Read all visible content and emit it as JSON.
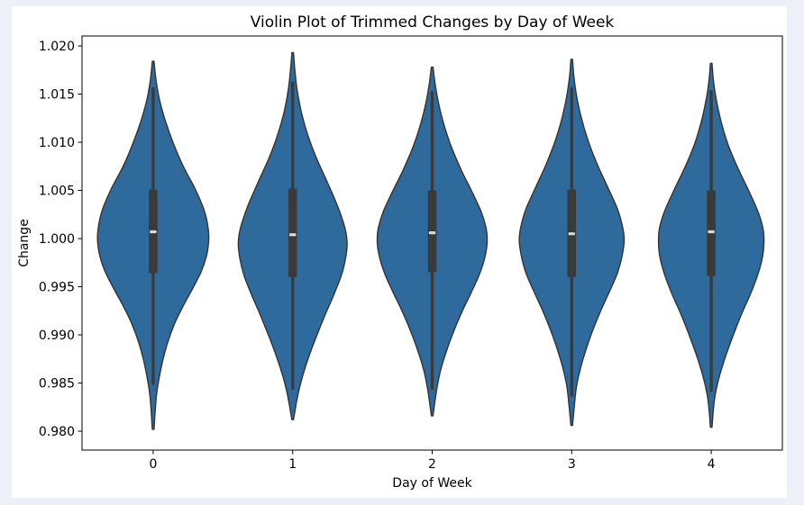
{
  "chart_data": {
    "type": "violin",
    "title": "Violin Plot of Trimmed Changes by Day of Week",
    "xlabel": "Day of Week",
    "ylabel": "Change",
    "x_tick_labels": [
      "0",
      "1",
      "2",
      "3",
      "4"
    ],
    "y_tick_labels": [
      "1.020",
      "1.015",
      "1.010",
      "1.005",
      "1.000",
      "0.995",
      "0.990",
      "0.985",
      "0.980"
    ],
    "xlim": [
      -0.51,
      4.51
    ],
    "ylim": [
      0.97804,
      1.02103
    ],
    "grid": false,
    "legend": null,
    "style": {
      "violin_fill": "#2e6b9c",
      "violin_edge": "#333333",
      "box_color": "#3a3a3a",
      "whisker_color": "#3a3a3a",
      "median_color": "#d9d9d9",
      "spine_color": "#000000",
      "tick_color": "#000000",
      "figure_bg": "#ffffff",
      "canvas_bg": "#eef0f7"
    },
    "violins": [
      {
        "category": "0",
        "median": 1.0007,
        "q1": 0.9964,
        "q3": 1.0051,
        "whisker_low": 0.9848,
        "whisker_high": 1.0157,
        "max_halfwidth": 0.398,
        "kde": [
          [
            1.0184,
            0.015
          ],
          [
            1.0165,
            0.05
          ],
          [
            1.0145,
            0.11
          ],
          [
            1.0122,
            0.22
          ],
          [
            1.0098,
            0.37
          ],
          [
            1.0074,
            0.55
          ],
          [
            1.0051,
            0.76
          ],
          [
            1.0029,
            0.92
          ],
          [
            1.0011,
            0.99
          ],
          [
            0.9997,
            1.0
          ],
          [
            0.9982,
            0.96
          ],
          [
            0.9965,
            0.86
          ],
          [
            0.9947,
            0.7
          ],
          [
            0.9929,
            0.53
          ],
          [
            0.9911,
            0.38
          ],
          [
            0.9892,
            0.26
          ],
          [
            0.9873,
            0.17
          ],
          [
            0.9853,
            0.1
          ],
          [
            0.9838,
            0.06
          ],
          [
            0.982,
            0.035
          ],
          [
            0.9802,
            0.015
          ]
        ]
      },
      {
        "category": "1",
        "median": 1.0004,
        "q1": 0.996,
        "q3": 1.0052,
        "whisker_low": 0.9843,
        "whisker_high": 1.0163,
        "max_halfwidth": 0.39,
        "kde": [
          [
            1.0193,
            0.015
          ],
          [
            1.0175,
            0.04
          ],
          [
            1.0155,
            0.08
          ],
          [
            1.0131,
            0.16
          ],
          [
            1.0107,
            0.28
          ],
          [
            1.0083,
            0.44
          ],
          [
            1.0058,
            0.64
          ],
          [
            1.0033,
            0.83
          ],
          [
            1.0011,
            0.96
          ],
          [
            0.9995,
            1.0
          ],
          [
            0.9979,
            0.97
          ],
          [
            0.9961,
            0.89
          ],
          [
            0.9941,
            0.75
          ],
          [
            0.992,
            0.59
          ],
          [
            0.9899,
            0.44
          ],
          [
            0.9878,
            0.3
          ],
          [
            0.9857,
            0.18
          ],
          [
            0.9839,
            0.1
          ],
          [
            0.9827,
            0.06
          ],
          [
            0.9812,
            0.015
          ]
        ]
      },
      {
        "category": "2",
        "median": 1.0006,
        "q1": 0.9965,
        "q3": 1.005,
        "whisker_low": 0.9843,
        "whisker_high": 1.0153,
        "max_halfwidth": 0.394,
        "kde": [
          [
            1.0178,
            0.015
          ],
          [
            1.0162,
            0.05
          ],
          [
            1.0142,
            0.11
          ],
          [
            1.0119,
            0.21
          ],
          [
            1.0095,
            0.35
          ],
          [
            1.0071,
            0.53
          ],
          [
            1.0049,
            0.72
          ],
          [
            1.0028,
            0.89
          ],
          [
            1.0011,
            0.98
          ],
          [
            0.9997,
            1.0
          ],
          [
            0.9981,
            0.96
          ],
          [
            0.9963,
            0.86
          ],
          [
            0.9944,
            0.71
          ],
          [
            0.9925,
            0.55
          ],
          [
            0.9905,
            0.4
          ],
          [
            0.9885,
            0.27
          ],
          [
            0.9865,
            0.16
          ],
          [
            0.9846,
            0.09
          ],
          [
            0.9831,
            0.05
          ],
          [
            0.9816,
            0.015
          ]
        ]
      },
      {
        "category": "3",
        "median": 1.0005,
        "q1": 0.996,
        "q3": 1.0051,
        "whisker_low": 0.9836,
        "whisker_high": 1.0157,
        "max_halfwidth": 0.376,
        "kde": [
          [
            1.0186,
            0.015
          ],
          [
            1.0169,
            0.04
          ],
          [
            1.0149,
            0.09
          ],
          [
            1.0126,
            0.18
          ],
          [
            1.0102,
            0.31
          ],
          [
            1.0078,
            0.48
          ],
          [
            1.0054,
            0.68
          ],
          [
            1.0031,
            0.87
          ],
          [
            1.0012,
            0.97
          ],
          [
            0.9998,
            1.0
          ],
          [
            0.9982,
            0.96
          ],
          [
            0.9964,
            0.87
          ],
          [
            0.9945,
            0.72
          ],
          [
            0.9926,
            0.56
          ],
          [
            0.9906,
            0.41
          ],
          [
            0.9886,
            0.28
          ],
          [
            0.9866,
            0.17
          ],
          [
            0.9846,
            0.09
          ],
          [
            0.9826,
            0.05
          ],
          [
            0.9806,
            0.015
          ]
        ]
      },
      {
        "category": "4",
        "median": 1.0007,
        "q1": 0.9961,
        "q3": 1.005,
        "whisker_low": 0.9841,
        "whisker_high": 1.0154,
        "max_halfwidth": 0.378,
        "kde": [
          [
            1.0182,
            0.015
          ],
          [
            1.0165,
            0.04
          ],
          [
            1.0146,
            0.09
          ],
          [
            1.0123,
            0.18
          ],
          [
            1.0099,
            0.31
          ],
          [
            1.0075,
            0.49
          ],
          [
            1.0051,
            0.7
          ],
          [
            1.0029,
            0.88
          ],
          [
            1.0011,
            0.98
          ],
          [
            0.9996,
            1.0
          ],
          [
            0.998,
            0.97
          ],
          [
            0.9962,
            0.88
          ],
          [
            0.9942,
            0.74
          ],
          [
            0.9921,
            0.57
          ],
          [
            0.99,
            0.42
          ],
          [
            0.9879,
            0.28
          ],
          [
            0.9858,
            0.16
          ],
          [
            0.9839,
            0.08
          ],
          [
            0.9822,
            0.04
          ],
          [
            0.9804,
            0.015
          ]
        ]
      }
    ]
  }
}
